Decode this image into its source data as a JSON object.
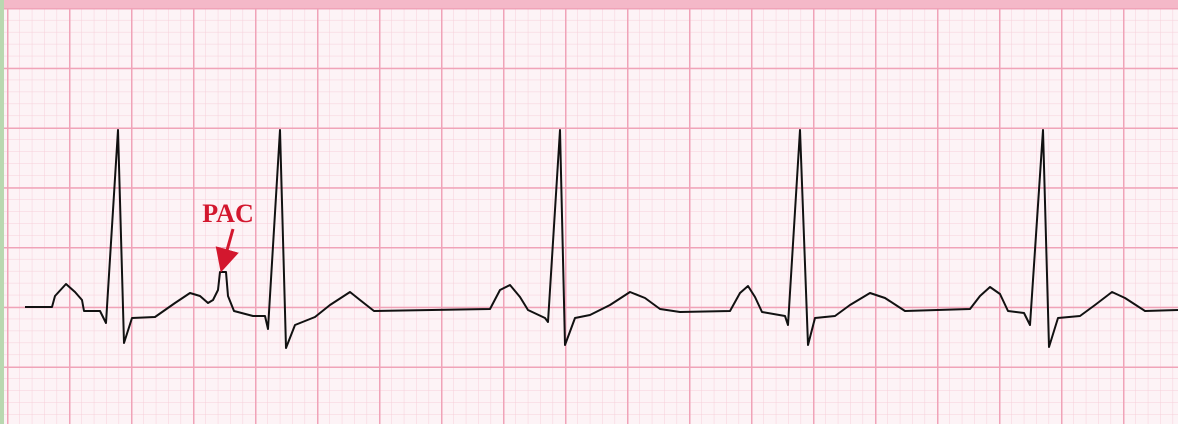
{
  "annotation": {
    "label": "PAC"
  }
}
